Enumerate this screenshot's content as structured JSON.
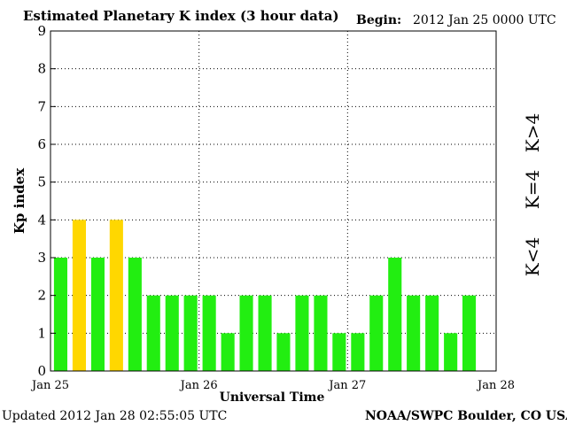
{
  "header": {
    "title": "Estimated Planetary K index (3 hour data)",
    "begin_label": "Begin:",
    "begin_value": "2012 Jan 25 0000 UTC"
  },
  "footer": {
    "updated": "Updated 2012 Jan 28 02:55:05 UTC",
    "source": "NOAA/SWPC Boulder, CO USA"
  },
  "legend": {
    "high": "K>4",
    "mid": "K=4",
    "low": "K<4"
  },
  "colors": {
    "low": "#22ee11",
    "mid": "#ffd700",
    "high": "#ff3311"
  },
  "chart_data": {
    "type": "bar",
    "xlabel": "Universal Time",
    "ylabel": "Kp index",
    "ylim": [
      0,
      9
    ],
    "yticks": [
      "0",
      "1",
      "2",
      "3",
      "4",
      "5",
      "6",
      "7",
      "8",
      "9"
    ],
    "xticks": [
      "Jan 25",
      "Jan 26",
      "Jan 27",
      "Jan 28"
    ],
    "grid": true,
    "values": [
      3,
      4,
      3,
      4,
      3,
      2,
      2,
      2,
      2,
      1,
      2,
      2,
      1,
      2,
      2,
      1,
      1,
      2,
      3,
      2,
      2,
      1,
      2
    ]
  }
}
